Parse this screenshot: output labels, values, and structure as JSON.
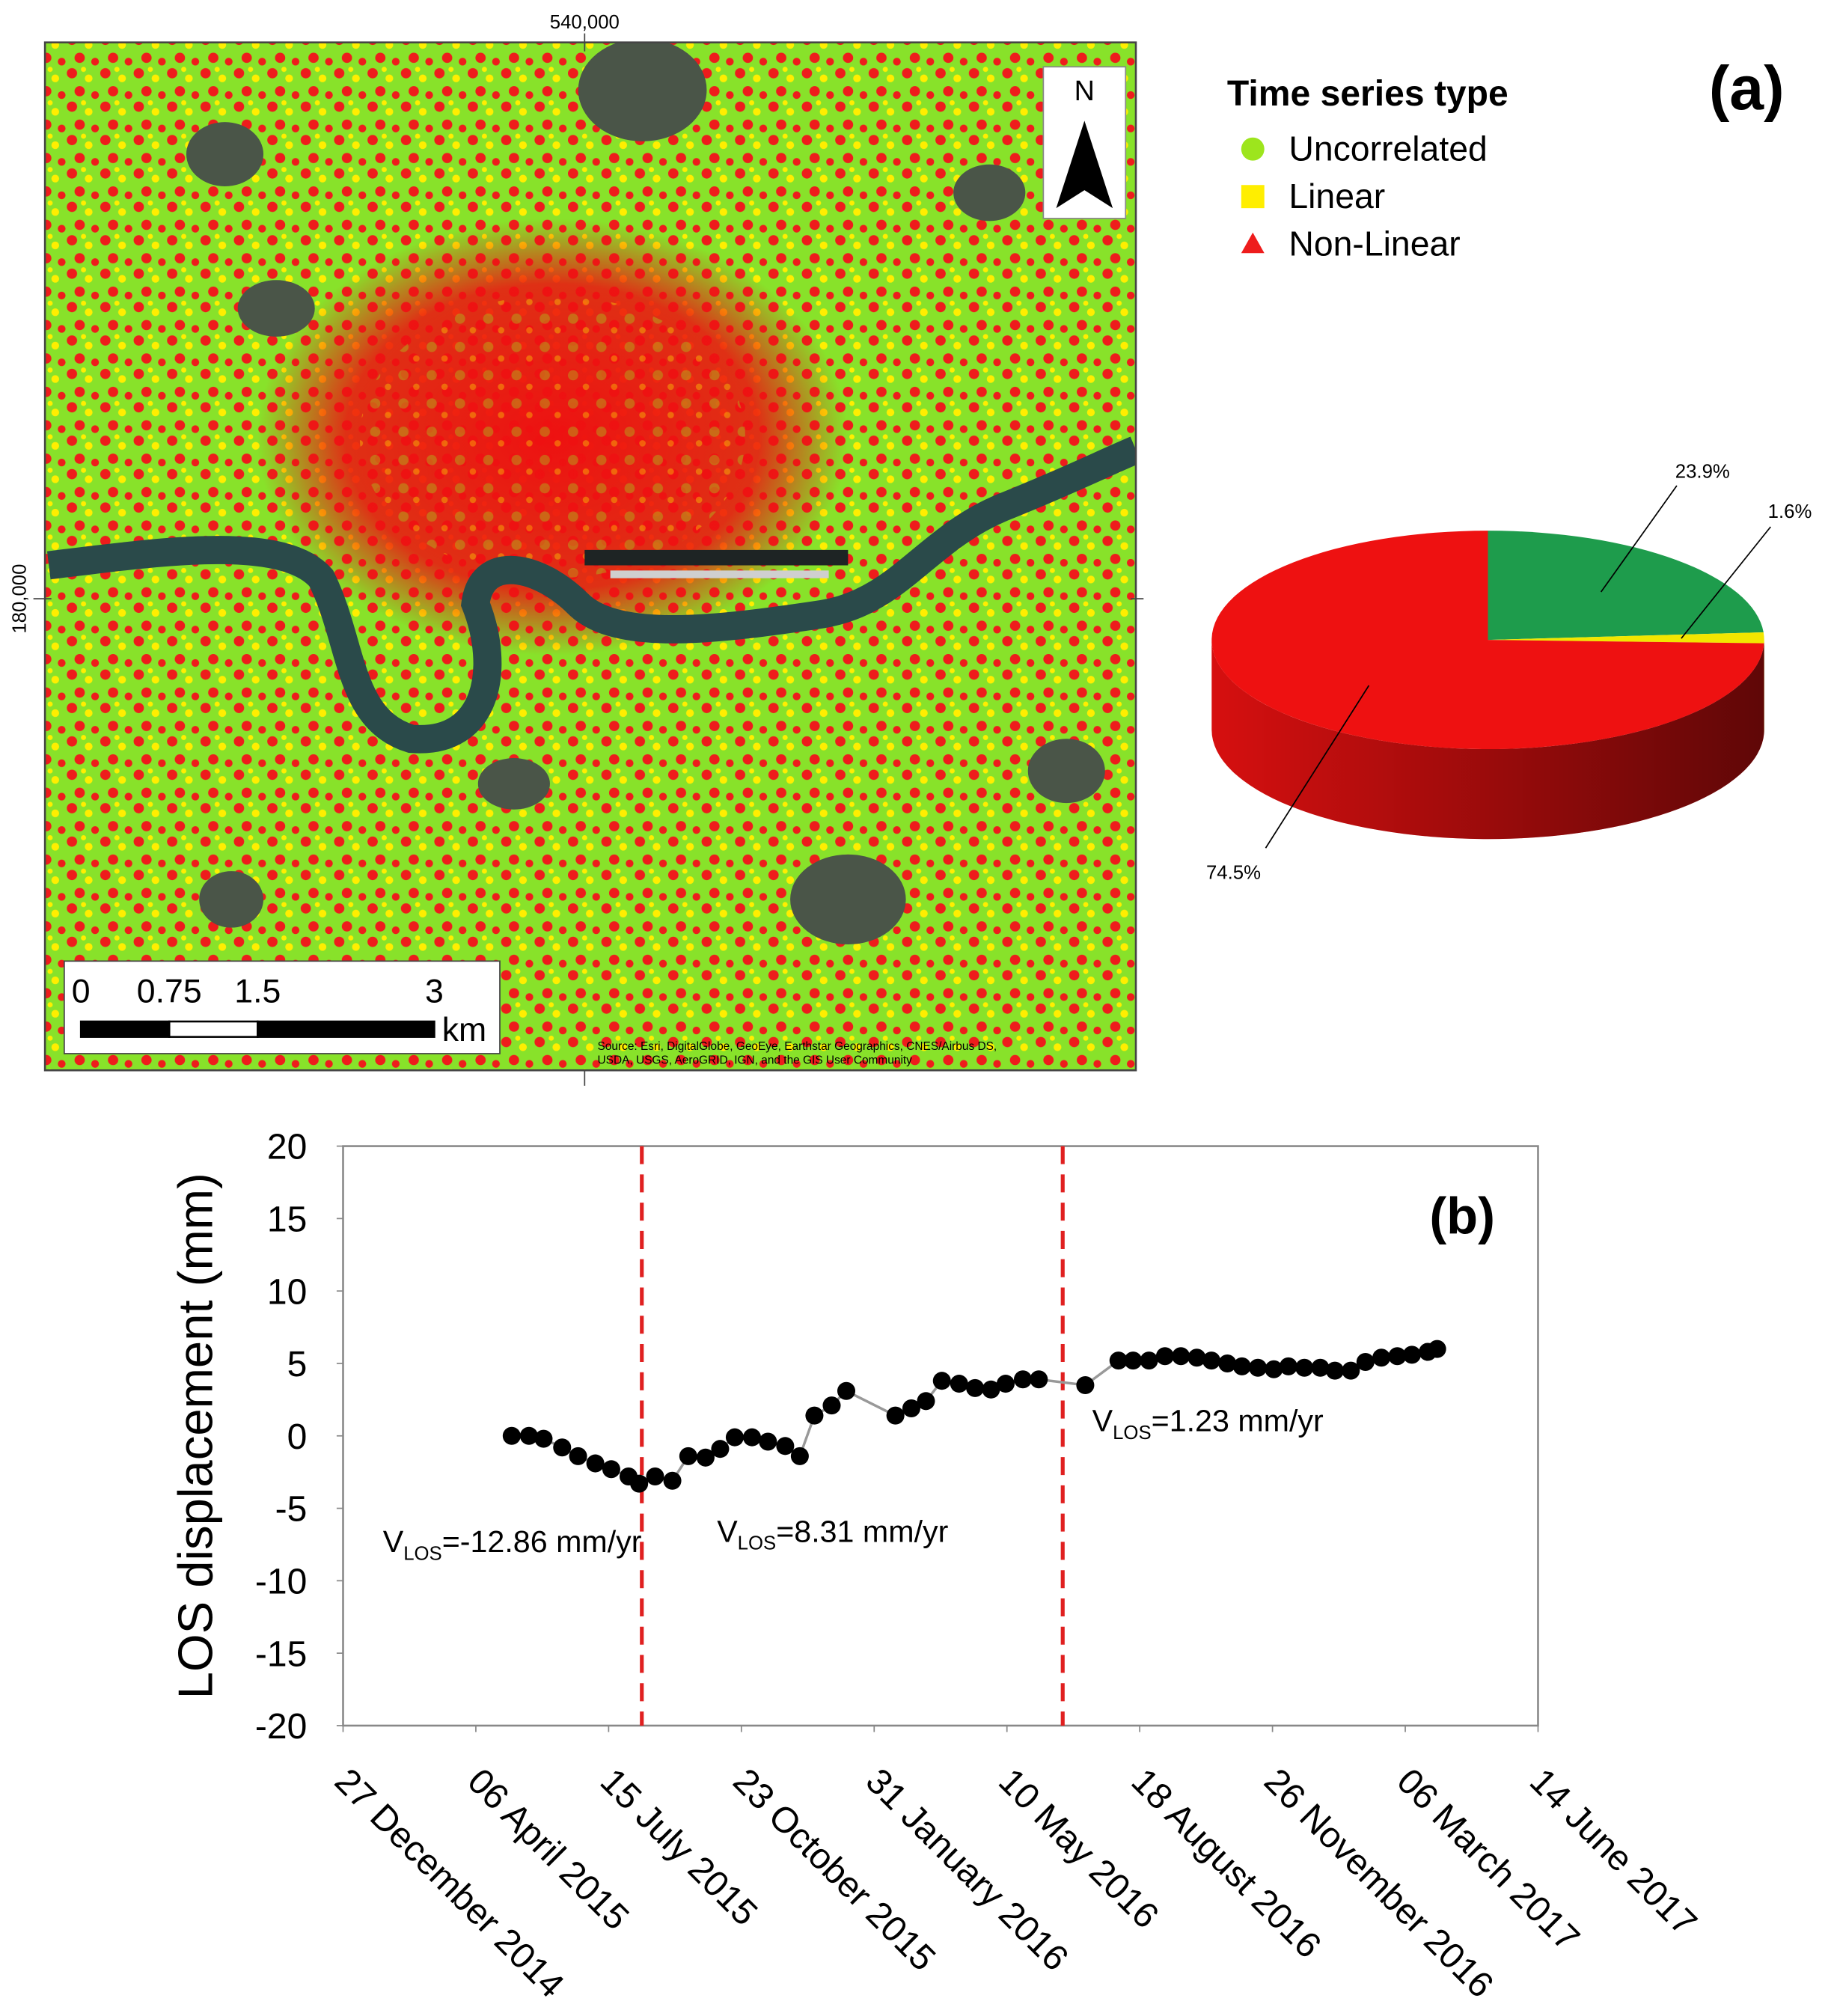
{
  "chart_data": [
    {
      "type": "map",
      "label": "(a)",
      "x_label": "540,000",
      "y_label": "180,000",
      "north": "N",
      "scale": {
        "ticks": [
          0,
          0.75,
          1.5,
          3
        ],
        "xlim": [
          0,
          3
        ],
        "unit": "km"
      },
      "source": [
        "Source: Esri, DigitalGlobe, GeoEye, Earthstar Geographics, CNES/Airbus DS,",
        "USDA, USGS, AeroGRID, IGN, and the GIS User Community"
      ],
      "legend": {
        "title": "Time series type",
        "items": [
          {
            "name": "Uncorrelated",
            "color": "#9de51d",
            "marker": "circle"
          },
          {
            "name": "Linear",
            "color": "#ffee00",
            "marker": "square"
          },
          {
            "name": "Non-Linear",
            "color": "#ee1c1c",
            "marker": "triangle"
          }
        ]
      }
    },
    {
      "type": "pie",
      "values": [
        23.9,
        1.6,
        74.5
      ],
      "value_labels": [
        "23.9%",
        "1.6%",
        "74.5%"
      ],
      "colors": [
        "#1e9c4c",
        "#f2e600",
        "#ee1111"
      ]
    },
    {
      "type": "line",
      "label": "(b)",
      "ylabel": "LOS displacement (mm)",
      "x": [
        "2015-05-03",
        "2015-05-16",
        "2015-05-27",
        "2015-06-10",
        "2015-06-22",
        "2015-07-05",
        "2015-07-17",
        "2015-07-30",
        "2015-08-07",
        "2015-08-19",
        "2015-09-01",
        "2015-09-13",
        "2015-09-26",
        "2015-10-07",
        "2015-10-18",
        "2015-10-31",
        "2015-11-12",
        "2015-11-25",
        "2015-12-06",
        "2015-12-17",
        "2015-12-30",
        "2016-01-10",
        "2016-02-16",
        "2016-02-28",
        "2016-03-10",
        "2016-03-22",
        "2016-04-04",
        "2016-04-16",
        "2016-04-28",
        "2016-05-09",
        "2016-05-22",
        "2016-06-03",
        "2016-07-08",
        "2016-08-02",
        "2016-08-13",
        "2016-08-25",
        "2016-09-06",
        "2016-09-18",
        "2016-09-30",
        "2016-10-11",
        "2016-10-23",
        "2016-11-03",
        "2016-11-15",
        "2016-11-27",
        "2016-12-08",
        "2016-12-20",
        "2017-01-01",
        "2017-01-12",
        "2017-01-24",
        "2017-02-04",
        "2017-02-16",
        "2017-02-28",
        "2017-03-11",
        "2017-03-23",
        "2017-03-30"
      ],
      "series": [
        {
          "color": "#000000",
          "values": [
            0,
            0,
            -0.2,
            -0.8,
            -1.4,
            -1.9,
            -2.3,
            -2.8,
            -3.3,
            -2.8,
            -3.1,
            -1.4,
            -1.5,
            -0.9,
            -0.1,
            -0.1,
            -0.4,
            -0.7,
            -1.4,
            1.4,
            2.1,
            3.1,
            1.4,
            1.9,
            2.4,
            3.8,
            3.6,
            3.3,
            3.2,
            3.6,
            3.9,
            3.9,
            3.5,
            5.2,
            5.2,
            5.2,
            5.5,
            5.5,
            5.4,
            5.2,
            5.0,
            4.8,
            4.7,
            4.6,
            4.8,
            4.7,
            4.7,
            4.5,
            4.5,
            5.1,
            5.4,
            5.5,
            5.6,
            5.8,
            6.0
          ]
        }
      ],
      "xlim": [
        "2014-12-27",
        "2017-06-14"
      ],
      "xticks": [
        {
          "value": "2014-12-27",
          "label": "27 December 2014"
        },
        {
          "value": "2015-04-06",
          "label": "06 April 2015"
        },
        {
          "value": "2015-07-15",
          "label": "15 July 2015"
        },
        {
          "value": "2015-10-23",
          "label": "23 October 2015"
        },
        {
          "value": "2016-01-31",
          "label": "31 January 2016"
        },
        {
          "value": "2016-05-10",
          "label": "10 May 2016"
        },
        {
          "value": "2016-08-18",
          "label": "18 August 2016"
        },
        {
          "value": "2016-11-26",
          "label": "26 November 2016"
        },
        {
          "value": "2017-03-06",
          "label": "06 March 2017"
        },
        {
          "value": "2017-06-14",
          "label": "14 June 2017"
        }
      ],
      "ylim": [
        -20,
        20
      ],
      "yticks": [
        20,
        15,
        10,
        5,
        0,
        -5,
        -10,
        -15,
        -20
      ],
      "vlines": [
        "2015-08-09",
        "2016-06-21"
      ],
      "vline_color": "#e02020",
      "annotations": [
        {
          "text": "V",
          "sub": "LOS",
          "rest": "=-12.86 mm/yr"
        },
        {
          "text": "V",
          "sub": "LOS",
          "rest": "=8.31 mm/yr"
        },
        {
          "text": "V",
          "sub": "LOS",
          "rest": "=1.23 mm/yr"
        }
      ]
    }
  ]
}
